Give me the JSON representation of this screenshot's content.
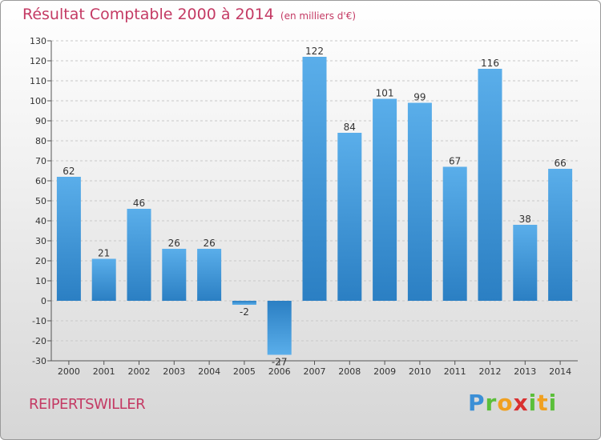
{
  "header": {
    "title": "Résultat Comptable 2000 à 2014",
    "subtitle": "(en milliers d'€)"
  },
  "footer": {
    "commune": "REIPERTSWILLER",
    "logo_text": "Proxiti"
  },
  "colors": {
    "title": "#c43a64",
    "bar_light": "#5aaeea",
    "bar_dark": "#2b7fc3",
    "grid": "#c8c8c8"
  },
  "chart_data": {
    "type": "bar",
    "title": "Résultat Comptable 2000 à 2014",
    "subtitle": "(en milliers d'€)",
    "categories": [
      "2000",
      "2001",
      "2002",
      "2003",
      "2004",
      "2005",
      "2006",
      "2007",
      "2008",
      "2009",
      "2010",
      "2011",
      "2012",
      "2013",
      "2014"
    ],
    "values": [
      62,
      21,
      46,
      26,
      26,
      -2,
      -27,
      122,
      84,
      101,
      99,
      67,
      116,
      38,
      66
    ],
    "ylim": [
      -30,
      130
    ],
    "yticks": [
      -30,
      -20,
      -10,
      0,
      10,
      20,
      30,
      40,
      50,
      60,
      70,
      80,
      90,
      100,
      110,
      120,
      130
    ],
    "grid": true,
    "legend": "none"
  }
}
